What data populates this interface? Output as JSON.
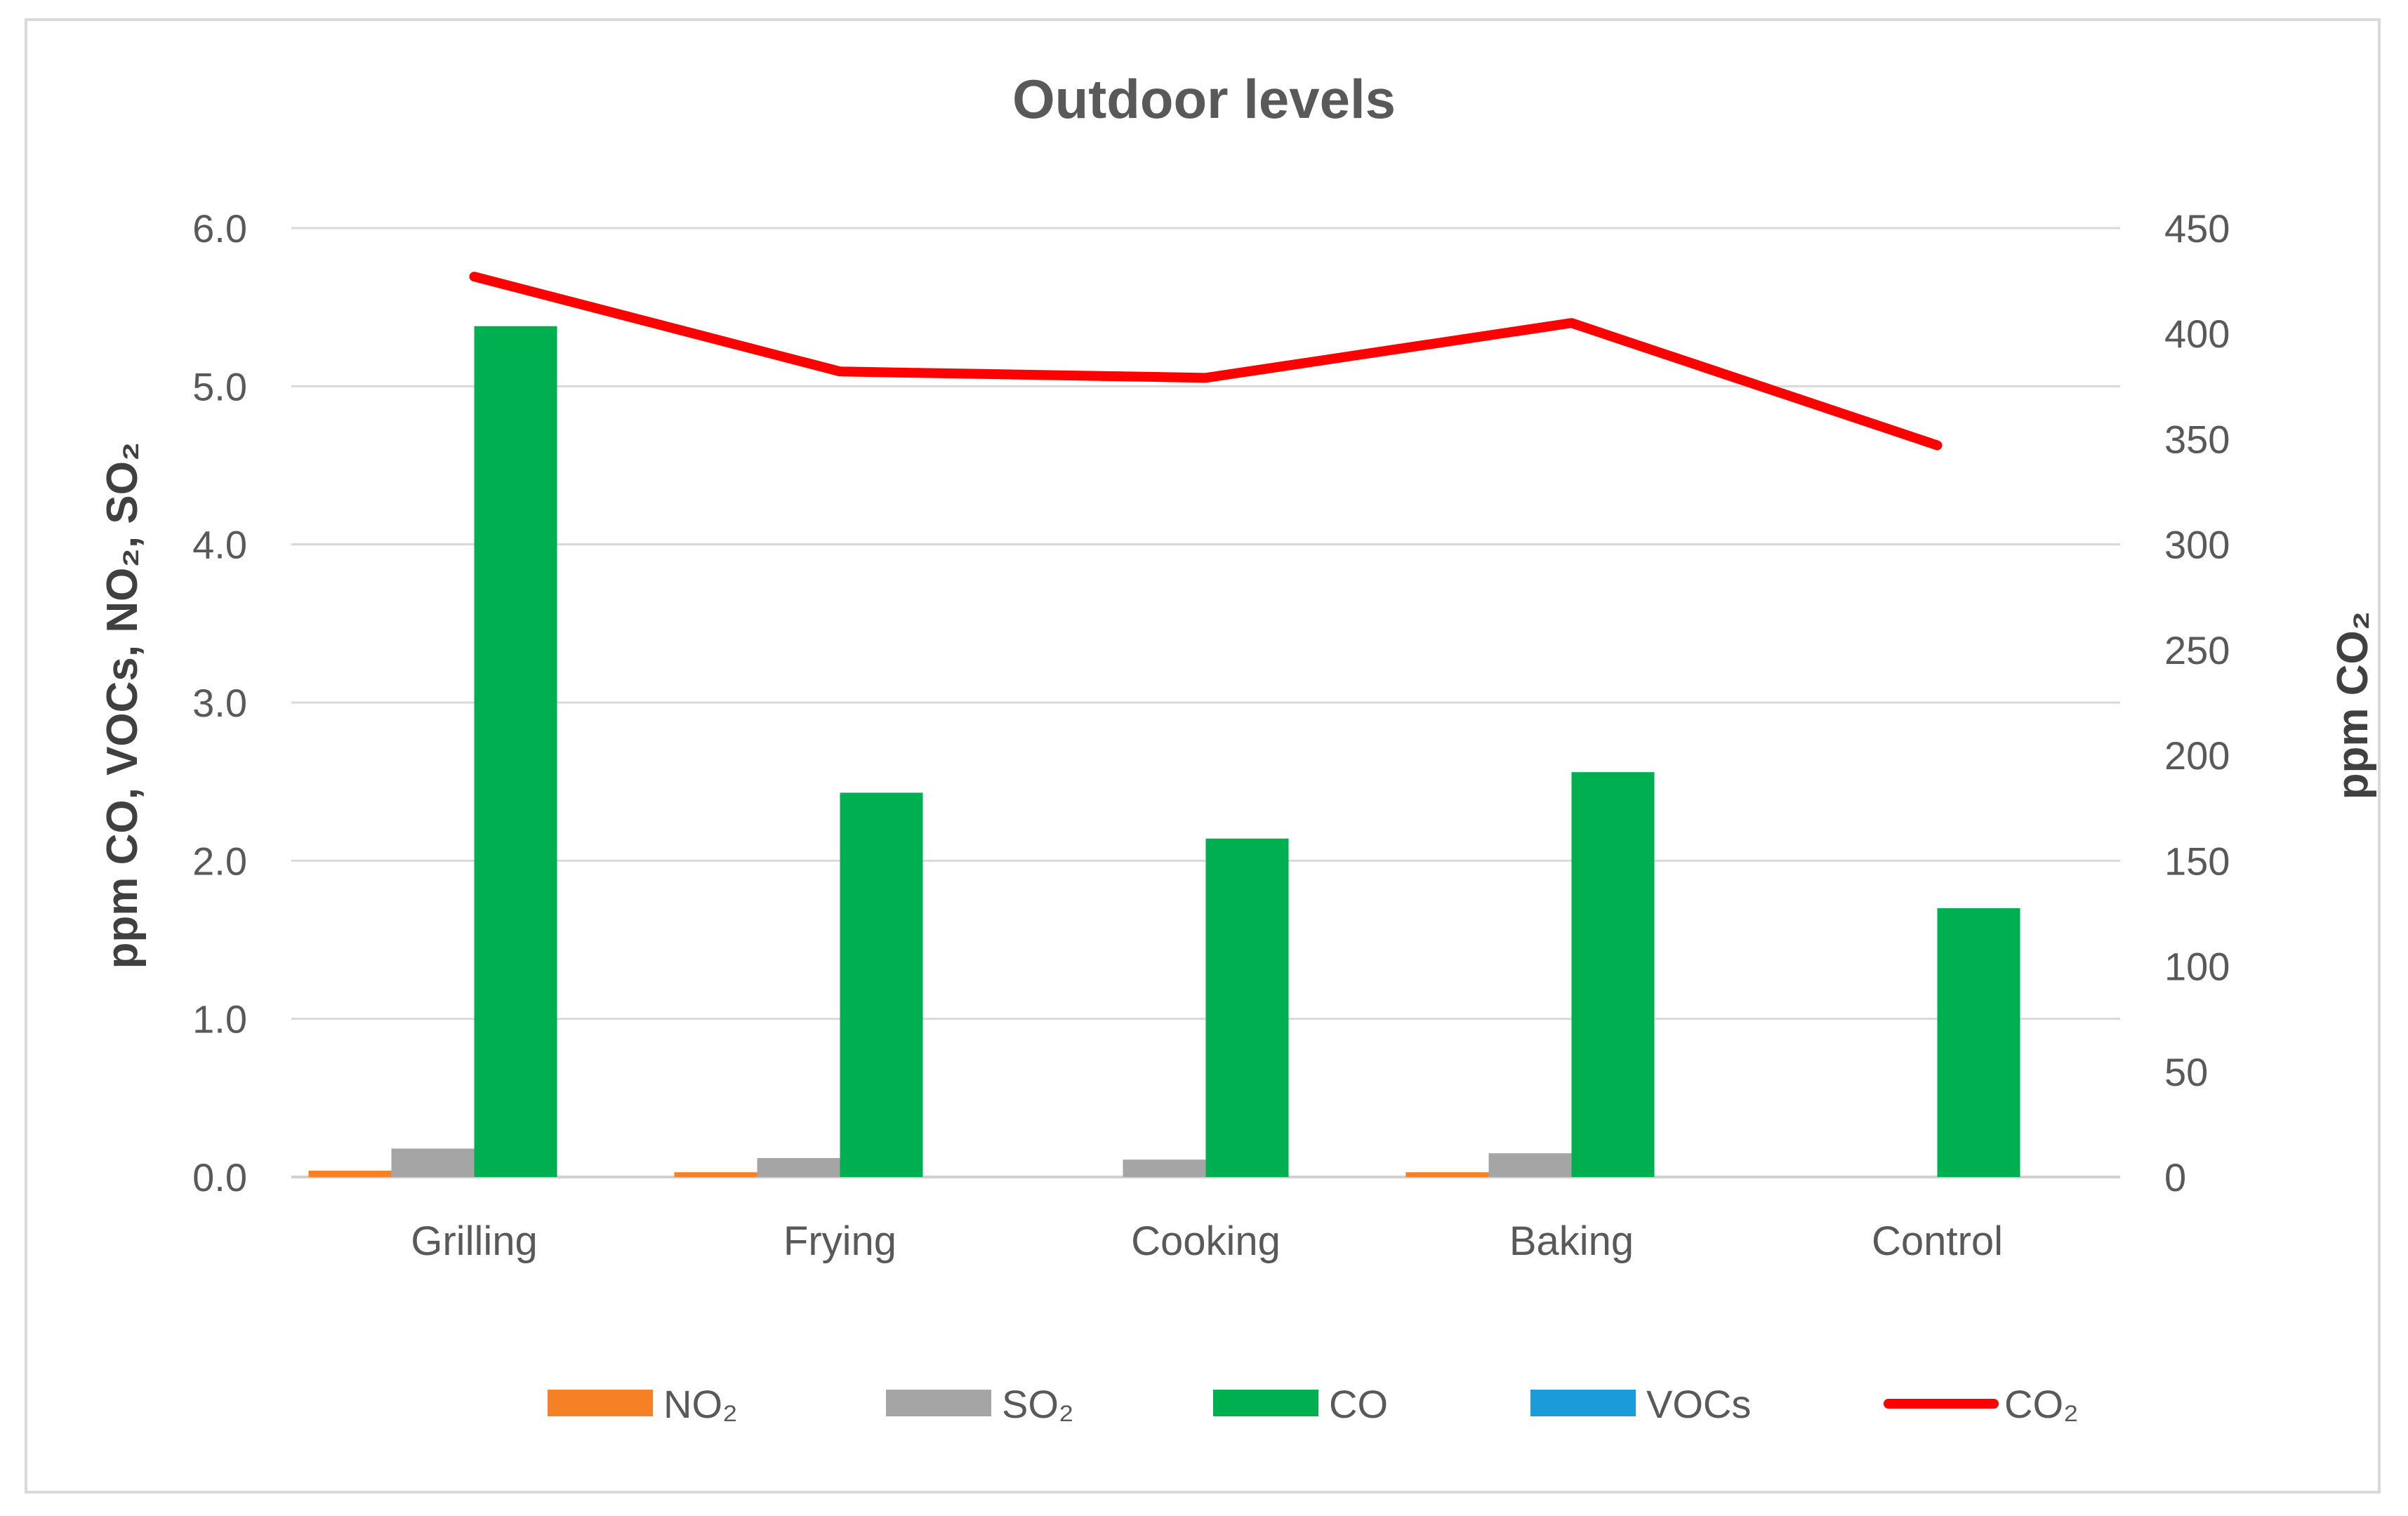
{
  "chart_data": {
    "type": "bar+line",
    "title": "Outdoor levels",
    "categories": [
      "Grilling",
      "Frying",
      "Cooking",
      "Baking",
      "Control"
    ],
    "ylabel_left": "ppm CO, VOCs, NO₂, SO₂",
    "ylabel_right": "ppm CO₂",
    "ylim_left": [
      0,
      6
    ],
    "ylim_right": [
      0,
      450
    ],
    "yticks_left": [
      "0.0",
      "1.0",
      "2.0",
      "3.0",
      "4.0",
      "5.0",
      "6.0"
    ],
    "yticks_right": [
      "0",
      "50",
      "100",
      "150",
      "200",
      "250",
      "300",
      "350",
      "400",
      "450"
    ],
    "grid": true,
    "legend_position": "bottom",
    "series": [
      {
        "name": "NO₂",
        "type": "bar",
        "axis": "left",
        "color": "#F58025",
        "values": [
          0.04,
          0.03,
          0.0,
          0.03,
          0.0
        ]
      },
      {
        "name": "SO₂",
        "type": "bar",
        "axis": "left",
        "color": "#A5A5A5",
        "values": [
          0.18,
          0.12,
          0.11,
          0.15,
          0.0
        ]
      },
      {
        "name": "CO",
        "type": "bar",
        "axis": "left",
        "color": "#00B050",
        "values": [
          5.38,
          2.43,
          2.14,
          2.56,
          1.7
        ]
      },
      {
        "name": "VOCs",
        "type": "bar",
        "axis": "left",
        "color": "#1B9BD7",
        "values": [
          0.0,
          0.0,
          0.0,
          0.0,
          0.0
        ]
      },
      {
        "name": "CO₂",
        "type": "line",
        "axis": "right",
        "color": "#FF0000",
        "values": [
          427,
          382,
          379,
          405,
          347
        ]
      }
    ]
  }
}
